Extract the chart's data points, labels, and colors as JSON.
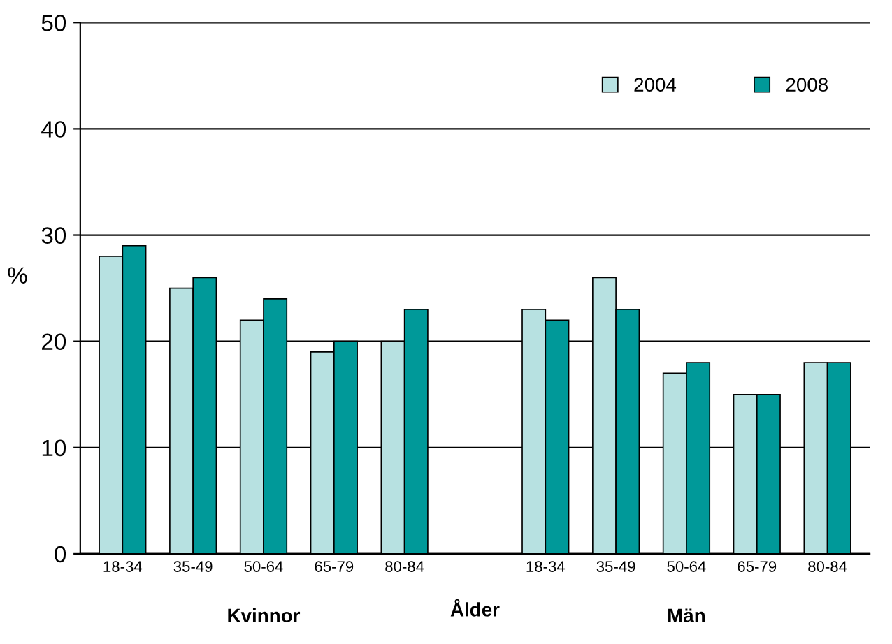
{
  "chart_data": {
    "type": "bar",
    "categories": [
      "18-34",
      "35-49",
      "50-64",
      "65-79",
      "80-84",
      null,
      "18-34",
      "35-49",
      "50-64",
      "65-79",
      "80-84"
    ],
    "series": [
      {
        "name": "2004",
        "color": "#b7e1e1",
        "values": [
          28,
          25,
          22,
          19,
          20,
          null,
          23,
          26,
          17,
          15,
          18
        ]
      },
      {
        "name": "2008",
        "color": "#009999",
        "values": [
          29,
          26,
          24,
          20,
          23,
          null,
          22,
          23,
          18,
          15,
          18
        ]
      }
    ],
    "ylabel": "%",
    "xlabel": "Ålder",
    "annotations": [
      "Kvinnor",
      "Män"
    ],
    "ylim": [
      0,
      50
    ],
    "yticks": [
      0,
      10,
      20,
      30,
      40,
      50
    ],
    "grid": "y",
    "legend": "top right"
  }
}
